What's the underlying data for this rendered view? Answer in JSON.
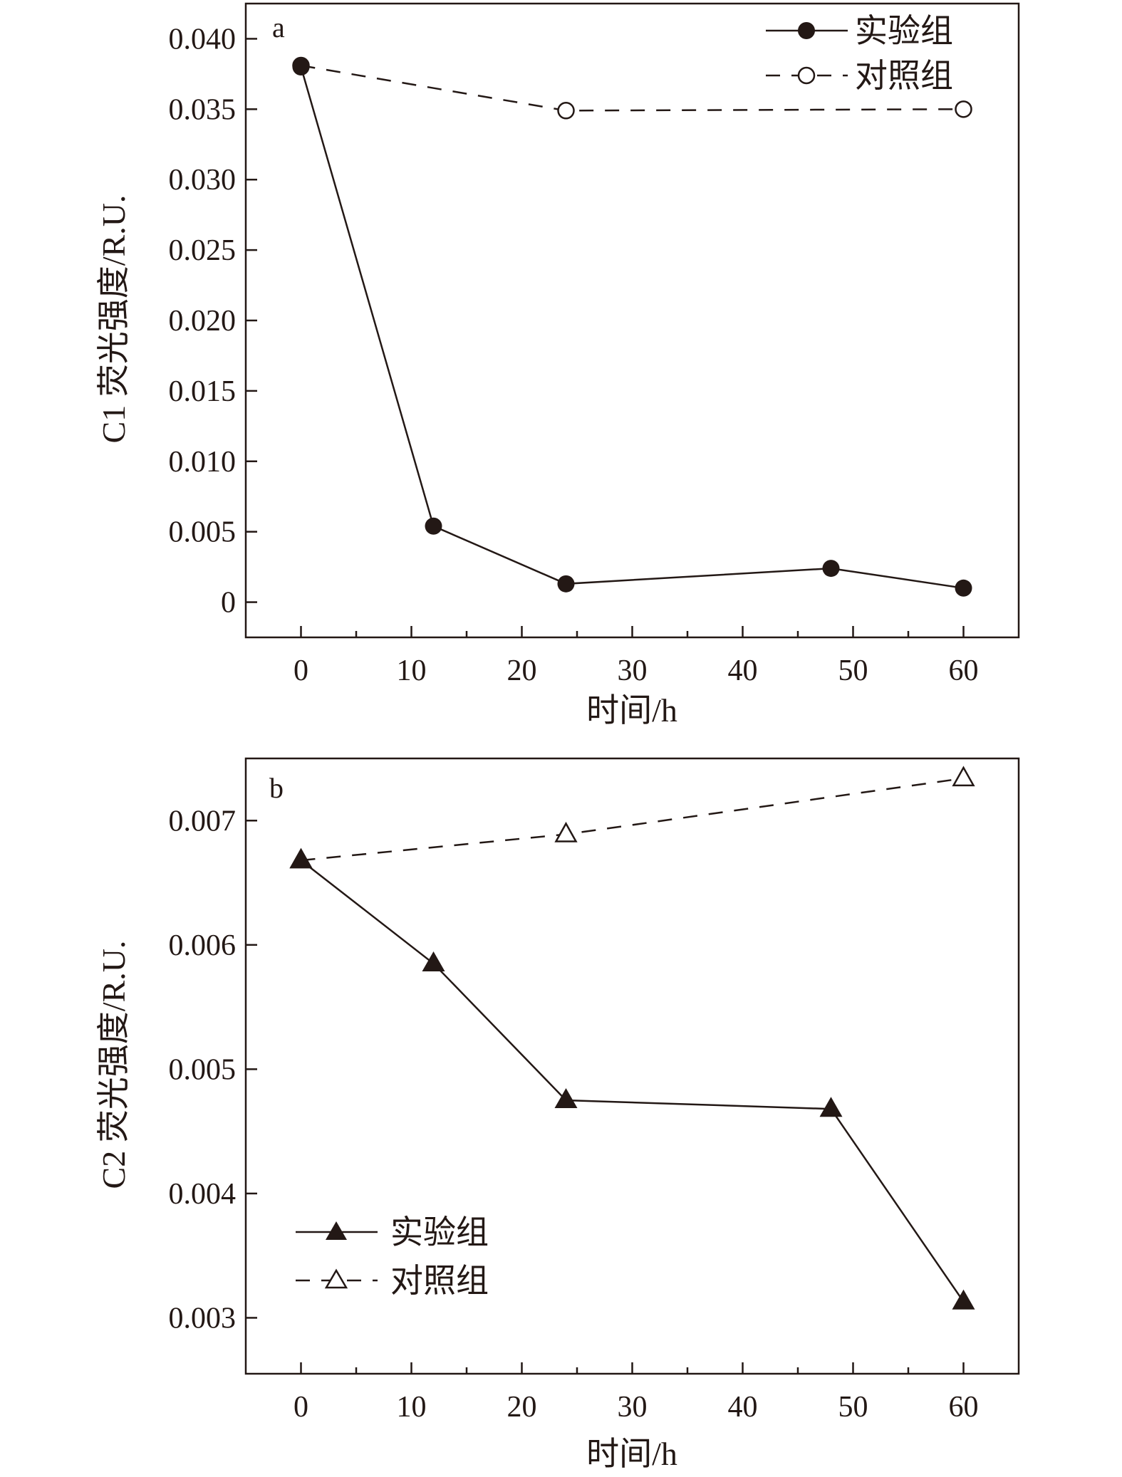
{
  "chart_data": [
    {
      "type": "line",
      "panel_label": "a",
      "xlabel": "时间/h",
      "ylabel": "C1 荧光强度/R.U.",
      "xlim": [
        -5,
        65
      ],
      "ylim": [
        -0.0025,
        0.0425
      ],
      "xticks": [
        0,
        10,
        20,
        30,
        40,
        50,
        60
      ],
      "xtick_labels": [
        "0",
        "10",
        "20",
        "30",
        "40",
        "50",
        "60"
      ],
      "yticks": [
        0,
        0.005,
        0.01,
        0.015,
        0.02,
        0.025,
        0.03,
        0.035,
        0.04
      ],
      "ytick_labels": [
        "0",
        "0.005",
        "0.010",
        "0.015",
        "0.020",
        "0.025",
        "0.030",
        "0.035",
        "0.040"
      ],
      "legend_position": "top-right",
      "grid": false,
      "series": [
        {
          "name": "实验组",
          "marker": "filled-circle",
          "line": "solid",
          "x": [
            0,
            12,
            24,
            48,
            60
          ],
          "y": [
            0.038,
            0.0054,
            0.0013,
            0.0024,
            0.001
          ]
        },
        {
          "name": "对照组",
          "marker": "open-circle",
          "line": "dashed",
          "x": [
            0,
            24,
            60
          ],
          "y": [
            0.0381,
            0.0349,
            0.035
          ]
        }
      ]
    },
    {
      "type": "line",
      "panel_label": "b",
      "xlabel": "时间/h",
      "ylabel": "C2 荧光强度/R.U.",
      "xlim": [
        -5,
        65
      ],
      "ylim": [
        0.00255,
        0.0075
      ],
      "xticks": [
        0,
        10,
        20,
        30,
        40,
        50,
        60
      ],
      "xtick_labels": [
        "0",
        "10",
        "20",
        "30",
        "40",
        "50",
        "60"
      ],
      "yticks": [
        0.003,
        0.004,
        0.005,
        0.006,
        0.007
      ],
      "ytick_labels": [
        "0.003",
        "0.004",
        "0.005",
        "0.006",
        "0.007"
      ],
      "legend_position": "bottom-left",
      "grid": false,
      "series": [
        {
          "name": "实验组",
          "marker": "filled-triangle",
          "line": "solid",
          "x": [
            0,
            12,
            24,
            48,
            60
          ],
          "y": [
            0.00668,
            0.00585,
            0.00475,
            0.00468,
            0.00313
          ]
        },
        {
          "name": "对照组",
          "marker": "open-triangle",
          "line": "dashed",
          "x": [
            0,
            24,
            60
          ],
          "y": [
            0.00668,
            0.00689,
            0.00734
          ]
        }
      ]
    }
  ]
}
